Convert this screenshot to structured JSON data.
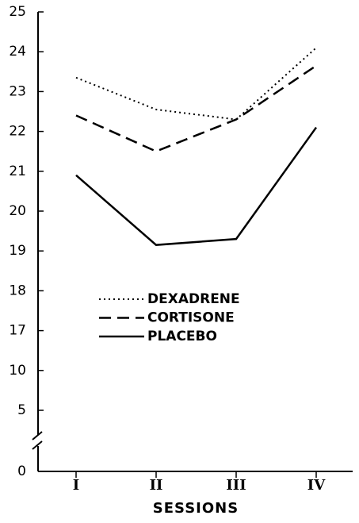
{
  "chart_data": {
    "type": "line",
    "xlabel": "SESSIONS",
    "categories": [
      "I",
      "II",
      "III",
      "IV"
    ],
    "series": [
      {
        "name": "DEXADRENE",
        "color": "#000000",
        "dash": "dotted",
        "values": [
          23.35,
          22.55,
          22.3,
          24.1
        ]
      },
      {
        "name": "CORTISONE",
        "color": "#000000",
        "dash": "dashed",
        "values": [
          22.4,
          21.5,
          22.3,
          23.65
        ]
      },
      {
        "name": "PLACEBO",
        "color": "#000000",
        "dash": "solid",
        "values": [
          20.9,
          19.15,
          19.3,
          22.1
        ]
      }
    ],
    "ylim": [
      0,
      25
    ],
    "yticks": [
      0,
      5,
      10,
      17,
      18,
      19,
      20,
      21,
      22,
      23,
      24,
      25
    ],
    "axis_break": true,
    "legend": "center-left"
  }
}
